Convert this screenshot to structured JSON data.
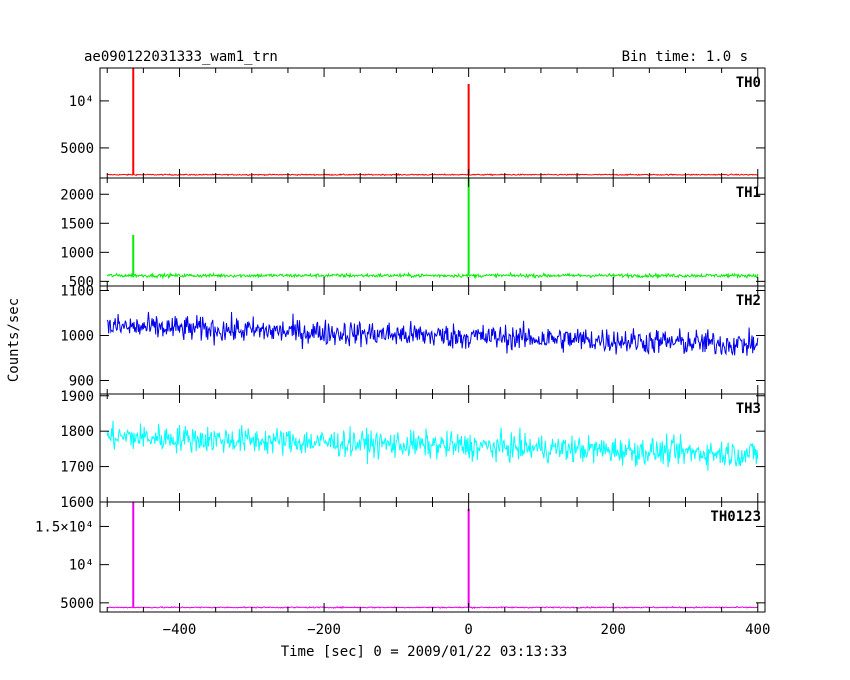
{
  "header": {
    "title": "ae090122031333_wam1_trn",
    "bin_time": "Bin time: 1.0 s"
  },
  "ylabel": "Counts/sec",
  "xlabel": "Time [sec] 0 = 2009/01/22 03:13:33",
  "colors": {
    "TH0": "#ff0000",
    "TH1": "#00ee00",
    "TH2": "#0000ee",
    "TH3": "#00ffff",
    "TH0123": "#ee00ee"
  },
  "chart_data": {
    "type": "line",
    "xlim": [
      -510,
      410
    ],
    "xticks": [
      -400,
      -200,
      0,
      200,
      400
    ],
    "xtick_labels": [
      "−400",
      "−200",
      "0",
      "200",
      "400"
    ],
    "panels": [
      {
        "name": "TH0",
        "color": "#ff0000",
        "ylim": [
          1800,
          13500
        ],
        "yticks": [
          5000,
          10000
        ],
        "ytick_labels": [
          "5000",
          "10⁴"
        ],
        "baseline": 2150,
        "noise": 60,
        "spikes": [
          {
            "x": -464,
            "y": 13500
          },
          {
            "x": 0,
            "y": 11800
          }
        ]
      },
      {
        "name": "TH1",
        "color": "#00ee00",
        "ylim": [
          420,
          2280
        ],
        "yticks": [
          500,
          1000,
          1500,
          2000
        ],
        "ytick_labels": [
          "500",
          "1000",
          "1500",
          "2000"
        ],
        "baseline": 600,
        "noise": 30,
        "spikes": [
          {
            "x": -464,
            "y": 1300
          },
          {
            "x": 0,
            "y": 2280
          }
        ]
      },
      {
        "name": "TH2",
        "color": "#0000ee",
        "ylim": [
          870,
          1110
        ],
        "yticks": [
          900,
          1000,
          1100
        ],
        "ytick_labels": [
          "900",
          "1000",
          "1100"
        ],
        "baseline_start": 1020,
        "baseline_end": 980,
        "noise": 28,
        "spikes": []
      },
      {
        "name": "TH3",
        "color": "#00ffff",
        "ylim": [
          1600,
          1905
        ],
        "yticks": [
          1600,
          1700,
          1800,
          1900
        ],
        "ytick_labels": [
          "1600",
          "1700",
          "1800",
          "1900"
        ],
        "baseline_start": 1785,
        "baseline_end": 1735,
        "noise": 38,
        "spikes": []
      },
      {
        "name": "TH0123",
        "color": "#ee00ee",
        "ylim": [
          3800,
          18200
        ],
        "yticks": [
          5000,
          10000,
          15000
        ],
        "ytick_labels": [
          "5000",
          "10⁴",
          "1.5×10⁴"
        ],
        "baseline": 4400,
        "noise": 80,
        "spikes": [
          {
            "x": -464,
            "y": 18200
          },
          {
            "x": 0,
            "y": 17300
          }
        ]
      }
    ]
  }
}
